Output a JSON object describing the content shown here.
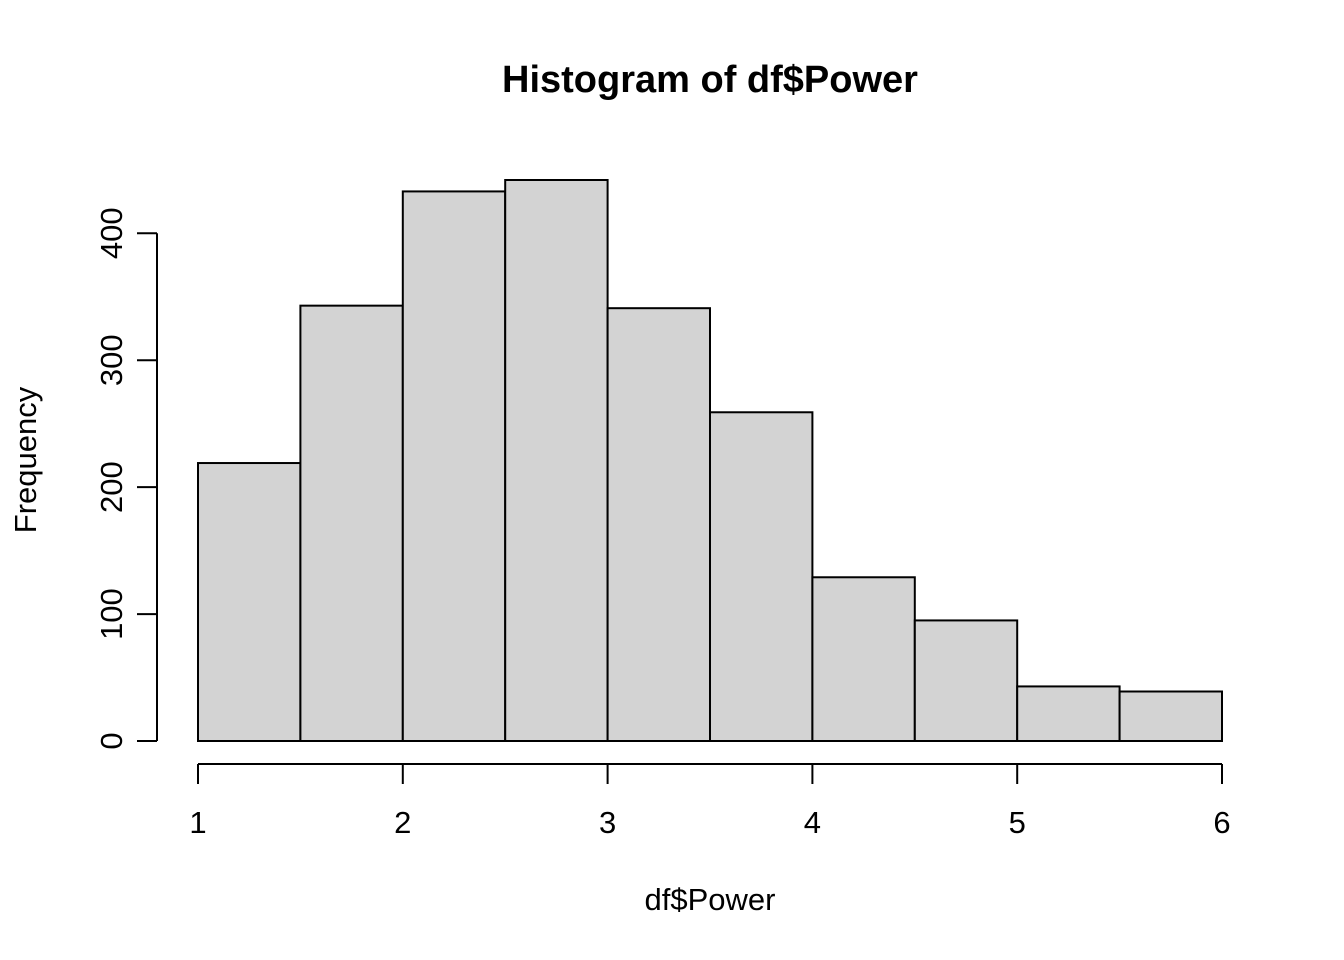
{
  "chart_data": {
    "type": "bar",
    "title": "Histogram of df$Power",
    "xlabel": "df$Power",
    "ylabel": "Frequency",
    "bins": [
      {
        "from": 1.0,
        "to": 1.5,
        "count": 219
      },
      {
        "from": 1.5,
        "to": 2.0,
        "count": 343
      },
      {
        "from": 2.0,
        "to": 2.5,
        "count": 433
      },
      {
        "from": 2.5,
        "to": 3.0,
        "count": 442
      },
      {
        "from": 3.0,
        "to": 3.5,
        "count": 341
      },
      {
        "from": 3.5,
        "to": 4.0,
        "count": 259
      },
      {
        "from": 4.0,
        "to": 4.5,
        "count": 129
      },
      {
        "from": 4.5,
        "to": 5.0,
        "count": 95
      },
      {
        "from": 5.0,
        "to": 5.5,
        "count": 43
      },
      {
        "from": 5.5,
        "to": 6.0,
        "count": 39
      }
    ],
    "xlim": [
      1,
      6
    ],
    "ylim": [
      0,
      442
    ],
    "x_ticks": [
      1,
      2,
      3,
      4,
      5,
      6
    ],
    "y_ticks": [
      0,
      100,
      200,
      300,
      400
    ],
    "grid": false,
    "bar_color": "#d3d3d3",
    "border_color": "#000000"
  }
}
